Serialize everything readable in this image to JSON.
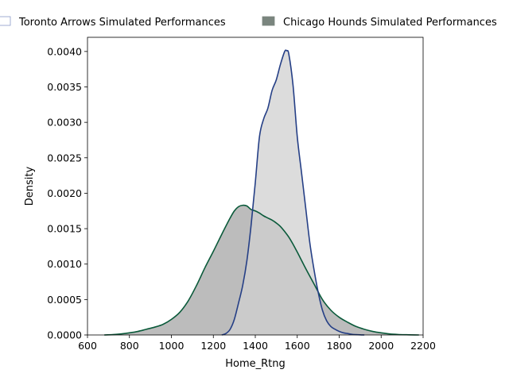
{
  "chart_data": {
    "type": "area",
    "title": "",
    "xlabel": "Home_Rtng",
    "ylabel": "Density",
    "xlim": [
      600,
      2200
    ],
    "ylim": [
      0,
      0.0042
    ],
    "x_ticks": [
      "600",
      "800",
      "1000",
      "1200",
      "1400",
      "1600",
      "1800",
      "2000",
      "2200"
    ],
    "y_ticks": [
      "0.0000",
      "0.0005",
      "0.0010",
      "0.0015",
      "0.0020",
      "0.0025",
      "0.0030",
      "0.0035",
      "0.0040"
    ],
    "grid": false,
    "legend_placement": "top",
    "series": [
      {
        "name": "Toronto Arrows Simulated Performances",
        "line_color": "#253f86",
        "fill_color": "#d0d0d0",
        "legend_patch_fill": "#ffffff",
        "legend_patch_edge": "#8a9ac8",
        "x": [
          1240,
          1260,
          1280,
          1300,
          1320,
          1340,
          1360,
          1380,
          1400,
          1420,
          1440,
          1460,
          1480,
          1500,
          1520,
          1540,
          1550,
          1560,
          1580,
          1600,
          1620,
          1640,
          1660,
          1680,
          1700,
          1720,
          1740,
          1760,
          1780,
          1800,
          1820,
          1840,
          1860,
          1880,
          1900,
          1920
        ],
        "y": [
          0.0,
          2e-05,
          8e-05,
          0.00022,
          0.00045,
          0.0007,
          0.00105,
          0.00155,
          0.00215,
          0.0028,
          0.00305,
          0.0032,
          0.00345,
          0.0036,
          0.00382,
          0.004,
          0.00401,
          0.00396,
          0.00352,
          0.0028,
          0.0023,
          0.0018,
          0.0013,
          0.00092,
          0.0006,
          0.00035,
          0.0002,
          0.00012,
          8e-05,
          5e-05,
          3e-05,
          2e-05,
          1e-05,
          5e-06,
          2e-06,
          0.0
        ]
      },
      {
        "name": "Chicago Hounds Simulated Performances",
        "line_color": "#0a5a3a",
        "fill_color": "#bcbcbc",
        "legend_patch_fill": "#7a857e",
        "legend_patch_edge": "#7a857e",
        "x": [
          680,
          720,
          760,
          800,
          840,
          880,
          920,
          960,
          1000,
          1040,
          1080,
          1120,
          1160,
          1200,
          1240,
          1280,
          1300,
          1320,
          1340,
          1360,
          1380,
          1400,
          1420,
          1440,
          1460,
          1480,
          1500,
          1520,
          1540,
          1560,
          1580,
          1600,
          1640,
          1680,
          1720,
          1760,
          1800,
          1840,
          1880,
          1920,
          1960,
          2000,
          2040,
          2080,
          2120,
          2160,
          2180
        ],
        "y": [
          0.0,
          5e-06,
          1.5e-05,
          3e-05,
          5e-05,
          8e-05,
          0.00011,
          0.00015,
          0.00022,
          0.00032,
          0.00048,
          0.0007,
          0.00095,
          0.00118,
          0.00142,
          0.00165,
          0.00175,
          0.00181,
          0.00183,
          0.00182,
          0.00177,
          0.00175,
          0.00172,
          0.00168,
          0.00165,
          0.00162,
          0.00158,
          0.00153,
          0.00146,
          0.00138,
          0.00128,
          0.00117,
          0.00094,
          0.00072,
          0.0005,
          0.00035,
          0.00025,
          0.00018,
          0.00012,
          8e-05,
          5e-05,
          3e-05,
          1.5e-05,
          7e-06,
          3e-06,
          1e-06,
          0.0
        ]
      }
    ]
  }
}
